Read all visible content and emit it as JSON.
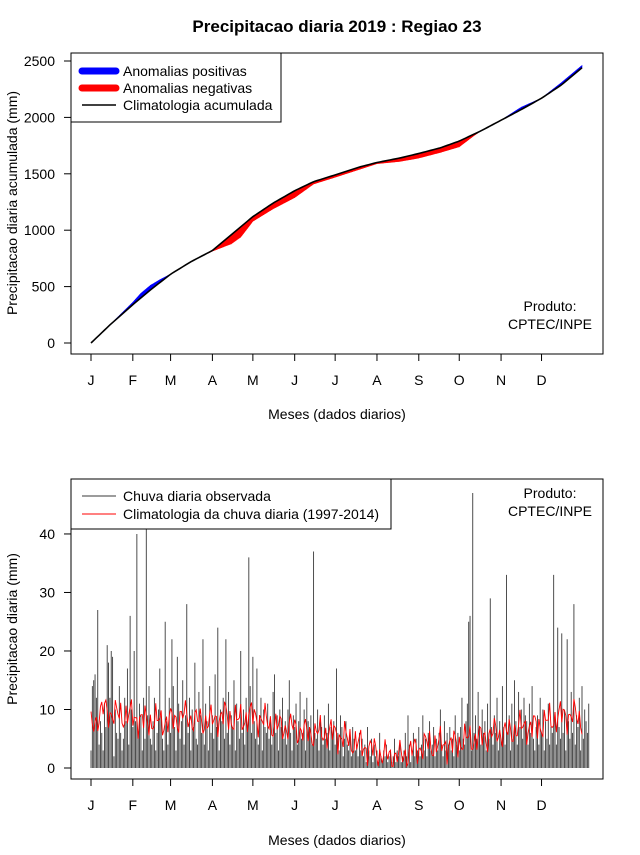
{
  "chart_data": [
    {
      "type": "area",
      "title": "Precipitacao diaria 2019 : Regiao 23",
      "xlabel": "Meses (dados diarios)",
      "ylabel": "Precipitacao diaria acumulada (mm)",
      "x_range": [
        1,
        365
      ],
      "ylim": [
        0,
        2500
      ],
      "yticks": [
        0,
        500,
        1000,
        1500,
        2000,
        2500
      ],
      "months": [
        "J",
        "F",
        "M",
        "A",
        "M",
        "J",
        "J",
        "A",
        "S",
        "O",
        "N",
        "D"
      ],
      "month_days": [
        1,
        32,
        60,
        91,
        121,
        152,
        182,
        213,
        244,
        274,
        305,
        335
      ],
      "legend": [
        {
          "label": "Anomalias positivas",
          "color": "#0000ff"
        },
        {
          "label": "Anomalias negativas",
          "color": "#ff0000"
        },
        {
          "label": "Climatologia acumulada",
          "color": "#000000"
        }
      ],
      "credit": [
        "Produto:",
        "CPTEC/INPE"
      ],
      "climatology_cumulative": {
        "day": [
          1,
          15,
          32,
          45,
          60,
          75,
          91,
          105,
          121,
          136,
          152,
          166,
          182,
          200,
          213,
          230,
          244,
          260,
          274,
          290,
          305,
          320,
          335,
          350,
          365
        ],
        "value": [
          0,
          160,
          340,
          470,
          610,
          720,
          820,
          960,
          1120,
          1240,
          1350,
          1430,
          1490,
          1560,
          1600,
          1640,
          1680,
          1730,
          1790,
          1880,
          1975,
          2070,
          2170,
          2290,
          2440
        ]
      },
      "observed_cumulative": {
        "day": [
          1,
          15,
          32,
          38,
          45,
          52,
          60,
          75,
          91,
          105,
          112,
          121,
          136,
          152,
          166,
          182,
          200,
          213,
          230,
          244,
          260,
          274,
          285,
          290,
          305,
          320,
          335,
          350,
          365
        ],
        "value": [
          0,
          160,
          360,
          440,
          510,
          560,
          610,
          720,
          815,
          880,
          940,
          1080,
          1190,
          1290,
          1410,
          1470,
          1540,
          1590,
          1610,
          1640,
          1690,
          1740,
          1840,
          1880,
          1975,
          2090,
          2170,
          2310,
          2460
        ]
      },
      "anomaly_color_rule": "positive where observed > climatology (blue), negative where observed < climatology (red)"
    },
    {
      "type": "line",
      "xlabel": "Meses (dados diarios)",
      "ylabel": "Precipitacao diaria (mm)",
      "x_range": [
        1,
        365
      ],
      "ylim": [
        0,
        47
      ],
      "yticks": [
        0,
        10,
        20,
        30,
        40
      ],
      "months": [
        "J",
        "F",
        "M",
        "A",
        "M",
        "J",
        "J",
        "A",
        "S",
        "O",
        "N",
        "D"
      ],
      "month_days": [
        1,
        32,
        60,
        91,
        121,
        152,
        182,
        213,
        244,
        274,
        305,
        335
      ],
      "legend": [
        {
          "label": "Chuva diaria observada",
          "color": "#3a3a3a"
        },
        {
          "label": "Climatologia da chuva diaria (1997-2014)",
          "color": "#ff0000"
        }
      ],
      "credit": [
        "Produto:",
        "CPTEC/INPE"
      ],
      "observed_daily": [
        3,
        14,
        15,
        16,
        12,
        27,
        4,
        8,
        6,
        3,
        11,
        7,
        21,
        18,
        12,
        20,
        19,
        2,
        10,
        6,
        5,
        14,
        6,
        3,
        5,
        12,
        8,
        17,
        4,
        26,
        10,
        7,
        20,
        8,
        40,
        6,
        11,
        9,
        3,
        12,
        5,
        46,
        9,
        14,
        5,
        4,
        8,
        12,
        3,
        6,
        10,
        17,
        9,
        5,
        3,
        25,
        8,
        4,
        12,
        6,
        22,
        14,
        7,
        3,
        19,
        11,
        5,
        8,
        15,
        4,
        9,
        28,
        6,
        12,
        3,
        10,
        7,
        18,
        5,
        4,
        13,
        9,
        6,
        22,
        4,
        11,
        8,
        3,
        14,
        6,
        9,
        5,
        16,
        7,
        24,
        3,
        10,
        8,
        12,
        5,
        22,
        6,
        13,
        4,
        9,
        7,
        15,
        3,
        11,
        8,
        5,
        20,
        6,
        10,
        4,
        12,
        7,
        36,
        14,
        6,
        19,
        8,
        5,
        17,
        4,
        9,
        12,
        3,
        10,
        7,
        6,
        11,
        5,
        8,
        4,
        13,
        16,
        6,
        9,
        3,
        10,
        7,
        12,
        5,
        8,
        4,
        10,
        15,
        6,
        3,
        9,
        7,
        11,
        4,
        8,
        13,
        5,
        6,
        10,
        3,
        12,
        8,
        7,
        9,
        4,
        37,
        6,
        5,
        10,
        3,
        8,
        7,
        4,
        9,
        5,
        6,
        11,
        3,
        7,
        5,
        8,
        4,
        17,
        6,
        3,
        9,
        7,
        2,
        5,
        8,
        4,
        3,
        6,
        2,
        7,
        5,
        3,
        4,
        2,
        6,
        3,
        5,
        2,
        4,
        1,
        7,
        3,
        2,
        5,
        1,
        4,
        2,
        3,
        1,
        6,
        2,
        1,
        3,
        2,
        4,
        1,
        2,
        3,
        1,
        2,
        5,
        1,
        3,
        2,
        4,
        1,
        2,
        3,
        6,
        2,
        9,
        4,
        1,
        3,
        6,
        2,
        5,
        3,
        7,
        2,
        4,
        9,
        3,
        5,
        2,
        6,
        8,
        3,
        4,
        7,
        2,
        5,
        3,
        6,
        10,
        4,
        2,
        8,
        3,
        6,
        4,
        7,
        3,
        5,
        2,
        9,
        4,
        6,
        3,
        7,
        12,
        5,
        4,
        8,
        11,
        25,
        26,
        3,
        47,
        6,
        9,
        5,
        13,
        7,
        4,
        10,
        6,
        8,
        3,
        11,
        5,
        29,
        7,
        4,
        9,
        6,
        12,
        3,
        8,
        5,
        14,
        7,
        4,
        33,
        6,
        9,
        3,
        11,
        5,
        15,
        8,
        4,
        13,
        7,
        10,
        5,
        12,
        9,
        8,
        4,
        11,
        6,
        14,
        5,
        3,
        7,
        9,
        4,
        12,
        6,
        10,
        3,
        8,
        5,
        11,
        4,
        7,
        6,
        33,
        9,
        4,
        24,
        7,
        5,
        23,
        6,
        10,
        3,
        22,
        8,
        5,
        13,
        6,
        28,
        4,
        9,
        7,
        12,
        3,
        14,
        5,
        10,
        8,
        6,
        11
      ],
      "climatology_daily": {
        "day": [
          1,
          10,
          20,
          30,
          40,
          50,
          60,
          70,
          80,
          90,
          100,
          110,
          120,
          130,
          140,
          150,
          160,
          170,
          180,
          190,
          200,
          210,
          220,
          230,
          240,
          250,
          260,
          270,
          280,
          290,
          300,
          310,
          320,
          330,
          340,
          350,
          360,
          365
        ],
        "value": [
          7,
          10,
          9,
          9,
          8,
          8,
          8,
          9,
          8,
          8,
          9,
          8,
          9,
          8,
          7,
          7,
          6,
          6,
          6,
          5,
          4,
          3,
          2,
          2,
          3,
          4,
          4,
          4,
          5,
          5,
          6,
          6,
          7,
          7,
          8,
          9,
          9,
          8
        ]
      }
    }
  ]
}
